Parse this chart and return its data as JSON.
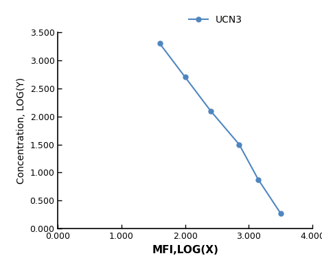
{
  "x": [
    1.6,
    2.0,
    2.4,
    2.85,
    3.15,
    3.5
  ],
  "y": [
    3.3,
    2.7,
    2.1,
    1.5,
    0.875,
    0.275
  ],
  "line_color": "#4e86c0",
  "marker": "o",
  "marker_size": 5,
  "line_width": 1.5,
  "xlabel": "MFI,LOG(X)",
  "ylabel": "Concentration, LOG(Y)",
  "legend_label": "UCN3",
  "xlim": [
    0.0,
    4.0
  ],
  "ylim": [
    0.0,
    3.5
  ],
  "xticks": [
    0.0,
    1.0,
    2.0,
    3.0,
    4.0
  ],
  "yticks": [
    0.0,
    0.5,
    1.0,
    1.5,
    2.0,
    2.5,
    3.0,
    3.5
  ],
  "xtick_labels": [
    "0.000",
    "1.000",
    "2.000",
    "3.000",
    "4.000"
  ],
  "ytick_labels": [
    "0.000",
    "0.500",
    "1.000",
    "1.500",
    "2.000",
    "2.500",
    "3.000",
    "3.500"
  ],
  "background_color": "#ffffff",
  "xlabel_fontsize": 11,
  "ylabel_fontsize": 10,
  "tick_fontsize": 9,
  "legend_fontsize": 10
}
